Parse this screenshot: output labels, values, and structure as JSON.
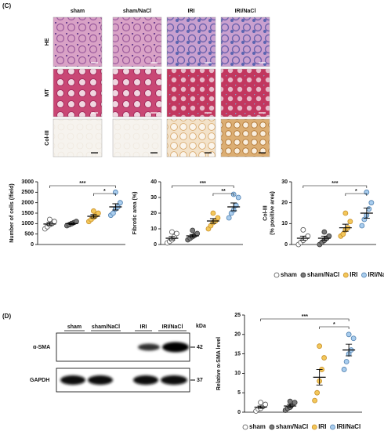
{
  "panel_c": {
    "label": "(C)",
    "columns": [
      "sham",
      "sham/NaCl",
      "IRI",
      "IRI/NaCl"
    ],
    "rows": [
      "HE",
      "MT",
      "Col-III"
    ]
  },
  "panel_d": {
    "label": "(D)",
    "lanes": [
      "sham",
      "sham/NaCl",
      "IRI",
      "IRI/NaCl"
    ],
    "kda": "kDa",
    "bands": [
      {
        "label": "α-SMA",
        "kda": "42"
      },
      {
        "label": "GAPDH",
        "kda": "37"
      }
    ]
  },
  "chart_data": [
    {
      "type": "scatter",
      "ylabel": [
        "Number of cells (/field)"
      ],
      "ylim": [
        0,
        3000
      ],
      "yticks": [
        0,
        500,
        1000,
        1500,
        2000,
        2500,
        3000
      ],
      "series": [
        {
          "color": "#ffffff",
          "edgecolor": "#555555",
          "values": [
            750,
            850,
            950,
            1000,
            1100,
            1200
          ],
          "mean": 980,
          "sem": 70
        },
        {
          "color": "#7a7a7a",
          "edgecolor": "#333333",
          "values": [
            900,
            950,
            1000,
            1050,
            1100,
            1000
          ],
          "mean": 1000,
          "sem": 40
        },
        {
          "color": "#f3c75a",
          "edgecolor": "#c8902a",
          "values": [
            1100,
            1200,
            1300,
            1400,
            1500,
            1600
          ],
          "mean": 1350,
          "sem": 80
        },
        {
          "color": "#a9cdee",
          "edgecolor": "#4f7fae",
          "values": [
            1400,
            1500,
            1700,
            1800,
            2000,
            2500
          ],
          "mean": 1800,
          "sem": 150
        }
      ],
      "annotations": [
        "***",
        "*"
      ]
    },
    {
      "type": "scatter",
      "ylabel": [
        "Fibrotic area (%)"
      ],
      "ylim": [
        0,
        40
      ],
      "yticks": [
        0,
        10,
        20,
        30,
        40
      ],
      "series": [
        {
          "color": "#ffffff",
          "edgecolor": "#555555",
          "values": [
            1,
            2,
            3,
            5,
            7,
            8
          ],
          "mean": 4,
          "sem": 1.1
        },
        {
          "color": "#7a7a7a",
          "edgecolor": "#333333",
          "values": [
            3,
            4,
            5,
            6,
            7,
            9
          ],
          "mean": 5.5,
          "sem": 0.9
        },
        {
          "color": "#f3c75a",
          "edgecolor": "#c8902a",
          "values": [
            10,
            12,
            14,
            15,
            17,
            20
          ],
          "mean": 15,
          "sem": 1.5
        },
        {
          "color": "#a9cdee",
          "edgecolor": "#4f7fae",
          "values": [
            17,
            20,
            22,
            25,
            30,
            32
          ],
          "mean": 24,
          "sem": 2.5
        }
      ],
      "annotations": [
        "***",
        "**"
      ]
    },
    {
      "type": "scatter",
      "ylabel": [
        "Col-III",
        "(% positive area)"
      ],
      "ylim": [
        0,
        30
      ],
      "yticks": [
        0,
        10,
        20,
        30
      ],
      "series": [
        {
          "name": "sham",
          "color": "#ffffff",
          "edgecolor": "#555555",
          "values": [
            0,
            1,
            2,
            3,
            4,
            7
          ],
          "mean": 3,
          "sem": 1
        },
        {
          "name": "sham/NaCl",
          "color": "#7a7a7a",
          "edgecolor": "#333333",
          "values": [
            0,
            1,
            2,
            3,
            4,
            6
          ],
          "mean": 3,
          "sem": 1
        },
        {
          "name": "IRI",
          "color": "#f3c75a",
          "edgecolor": "#c8902a",
          "values": [
            4,
            5,
            7,
            8,
            11,
            15
          ],
          "mean": 8,
          "sem": 1.7
        },
        {
          "name": "IRI/NaCl",
          "color": "#a9cdee",
          "edgecolor": "#4f7fae",
          "values": [
            9,
            12,
            14,
            17,
            20,
            25
          ],
          "mean": 15,
          "sem": 2.4
        }
      ],
      "annotations": [
        "***",
        "*"
      ]
    },
    {
      "type": "scatter",
      "ylabel": [
        "Relative α-SMA level"
      ],
      "ylim": [
        0,
        25
      ],
      "yticks": [
        0,
        5,
        10,
        15,
        20,
        25
      ],
      "series": [
        {
          "name": "sham",
          "color": "#ffffff",
          "edgecolor": "#555555",
          "values": [
            0.3,
            0.8,
            1,
            1.5,
            2,
            2.5
          ],
          "mean": 1.3,
          "sem": 0.3
        },
        {
          "name": "sham/NaCl",
          "color": "#7a7a7a",
          "edgecolor": "#333333",
          "values": [
            0.5,
            1,
            1.3,
            2,
            2.5,
            2.8
          ],
          "mean": 1.6,
          "sem": 0.4
        },
        {
          "name": "IRI",
          "color": "#f3c75a",
          "edgecolor": "#c8902a",
          "values": [
            3,
            5,
            8,
            11,
            14,
            17
          ],
          "mean": 9,
          "sem": 2
        },
        {
          "name": "IRI/NaCl",
          "color": "#a9cdee",
          "edgecolor": "#4f7fae",
          "values": [
            11,
            13,
            15,
            16,
            19,
            20
          ],
          "mean": 16,
          "sem": 1.5
        }
      ],
      "annotations": [
        "***",
        "*"
      ]
    }
  ]
}
